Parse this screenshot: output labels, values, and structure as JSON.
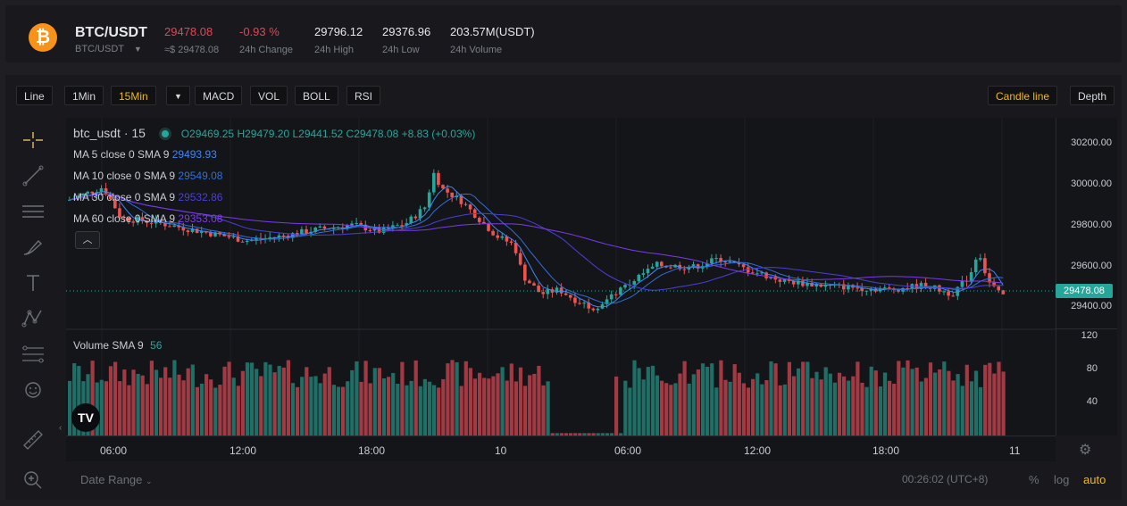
{
  "ticker": {
    "coin_symbol": "₿",
    "pair": "BTC/USDT",
    "pair_sub": "BTC/USDT",
    "last_price": "29478.08",
    "last_price_usd": "≈$ 29478.08",
    "change": "-0.93 %",
    "change_label": "24h Change",
    "high": "29796.12",
    "high_label": "24h High",
    "low": "29376.96",
    "low_label": "24h Low",
    "volume": "203.57M(USDT)",
    "volume_label": "24h Volume"
  },
  "toolbar": {
    "line": "Line",
    "m1": "1Min",
    "m15": "15Min",
    "more": "▼",
    "macd": "MACD",
    "vol": "VOL",
    "boll": "BOLL",
    "rsi": "RSI",
    "candle": "Candle line",
    "depth": "Depth"
  },
  "legend": {
    "symbol": "btc_usdt · 15",
    "ohlc": "O29469.25 H29479.20 L29441.52 C29478.08 +8.83 (+0.03%)",
    "ma5_label": "MA 5 close 0 SMA 9",
    "ma5_value": "29493.93",
    "ma10_label": "MA 10 close 0 SMA 9",
    "ma10_value": "29549.08",
    "ma30_label": "MA 30 close 0 SMA 9",
    "ma30_value": "29532.86",
    "ma60_label": "MA 60 close 0 SMA 9",
    "ma60_value": "29353.08",
    "volume_label": "Volume SMA 9",
    "volume_value": "56"
  },
  "axis": {
    "prices": [
      "30200.00",
      "30000.00",
      "29800.00",
      "29600.00",
      "29400.00"
    ],
    "current_price": "29478.08",
    "volumes": [
      "120",
      "80",
      "40"
    ],
    "times": [
      "06:00",
      "12:00",
      "18:00",
      "10",
      "06:00",
      "12:00",
      "18:00",
      "11"
    ]
  },
  "bottom": {
    "date_range": "Date Range",
    "clock": "00:26:02 (UTC+8)",
    "percent": "%",
    "log": "log",
    "auto": "auto"
  },
  "colors": {
    "up": "#26a69a",
    "down": "#ef5350",
    "ma5": "#3f86f7",
    "ma10": "#2f6fd8",
    "ma30": "#4b3fd8",
    "ma60": "#7c3aed",
    "accent": "#f0b90b"
  }
}
